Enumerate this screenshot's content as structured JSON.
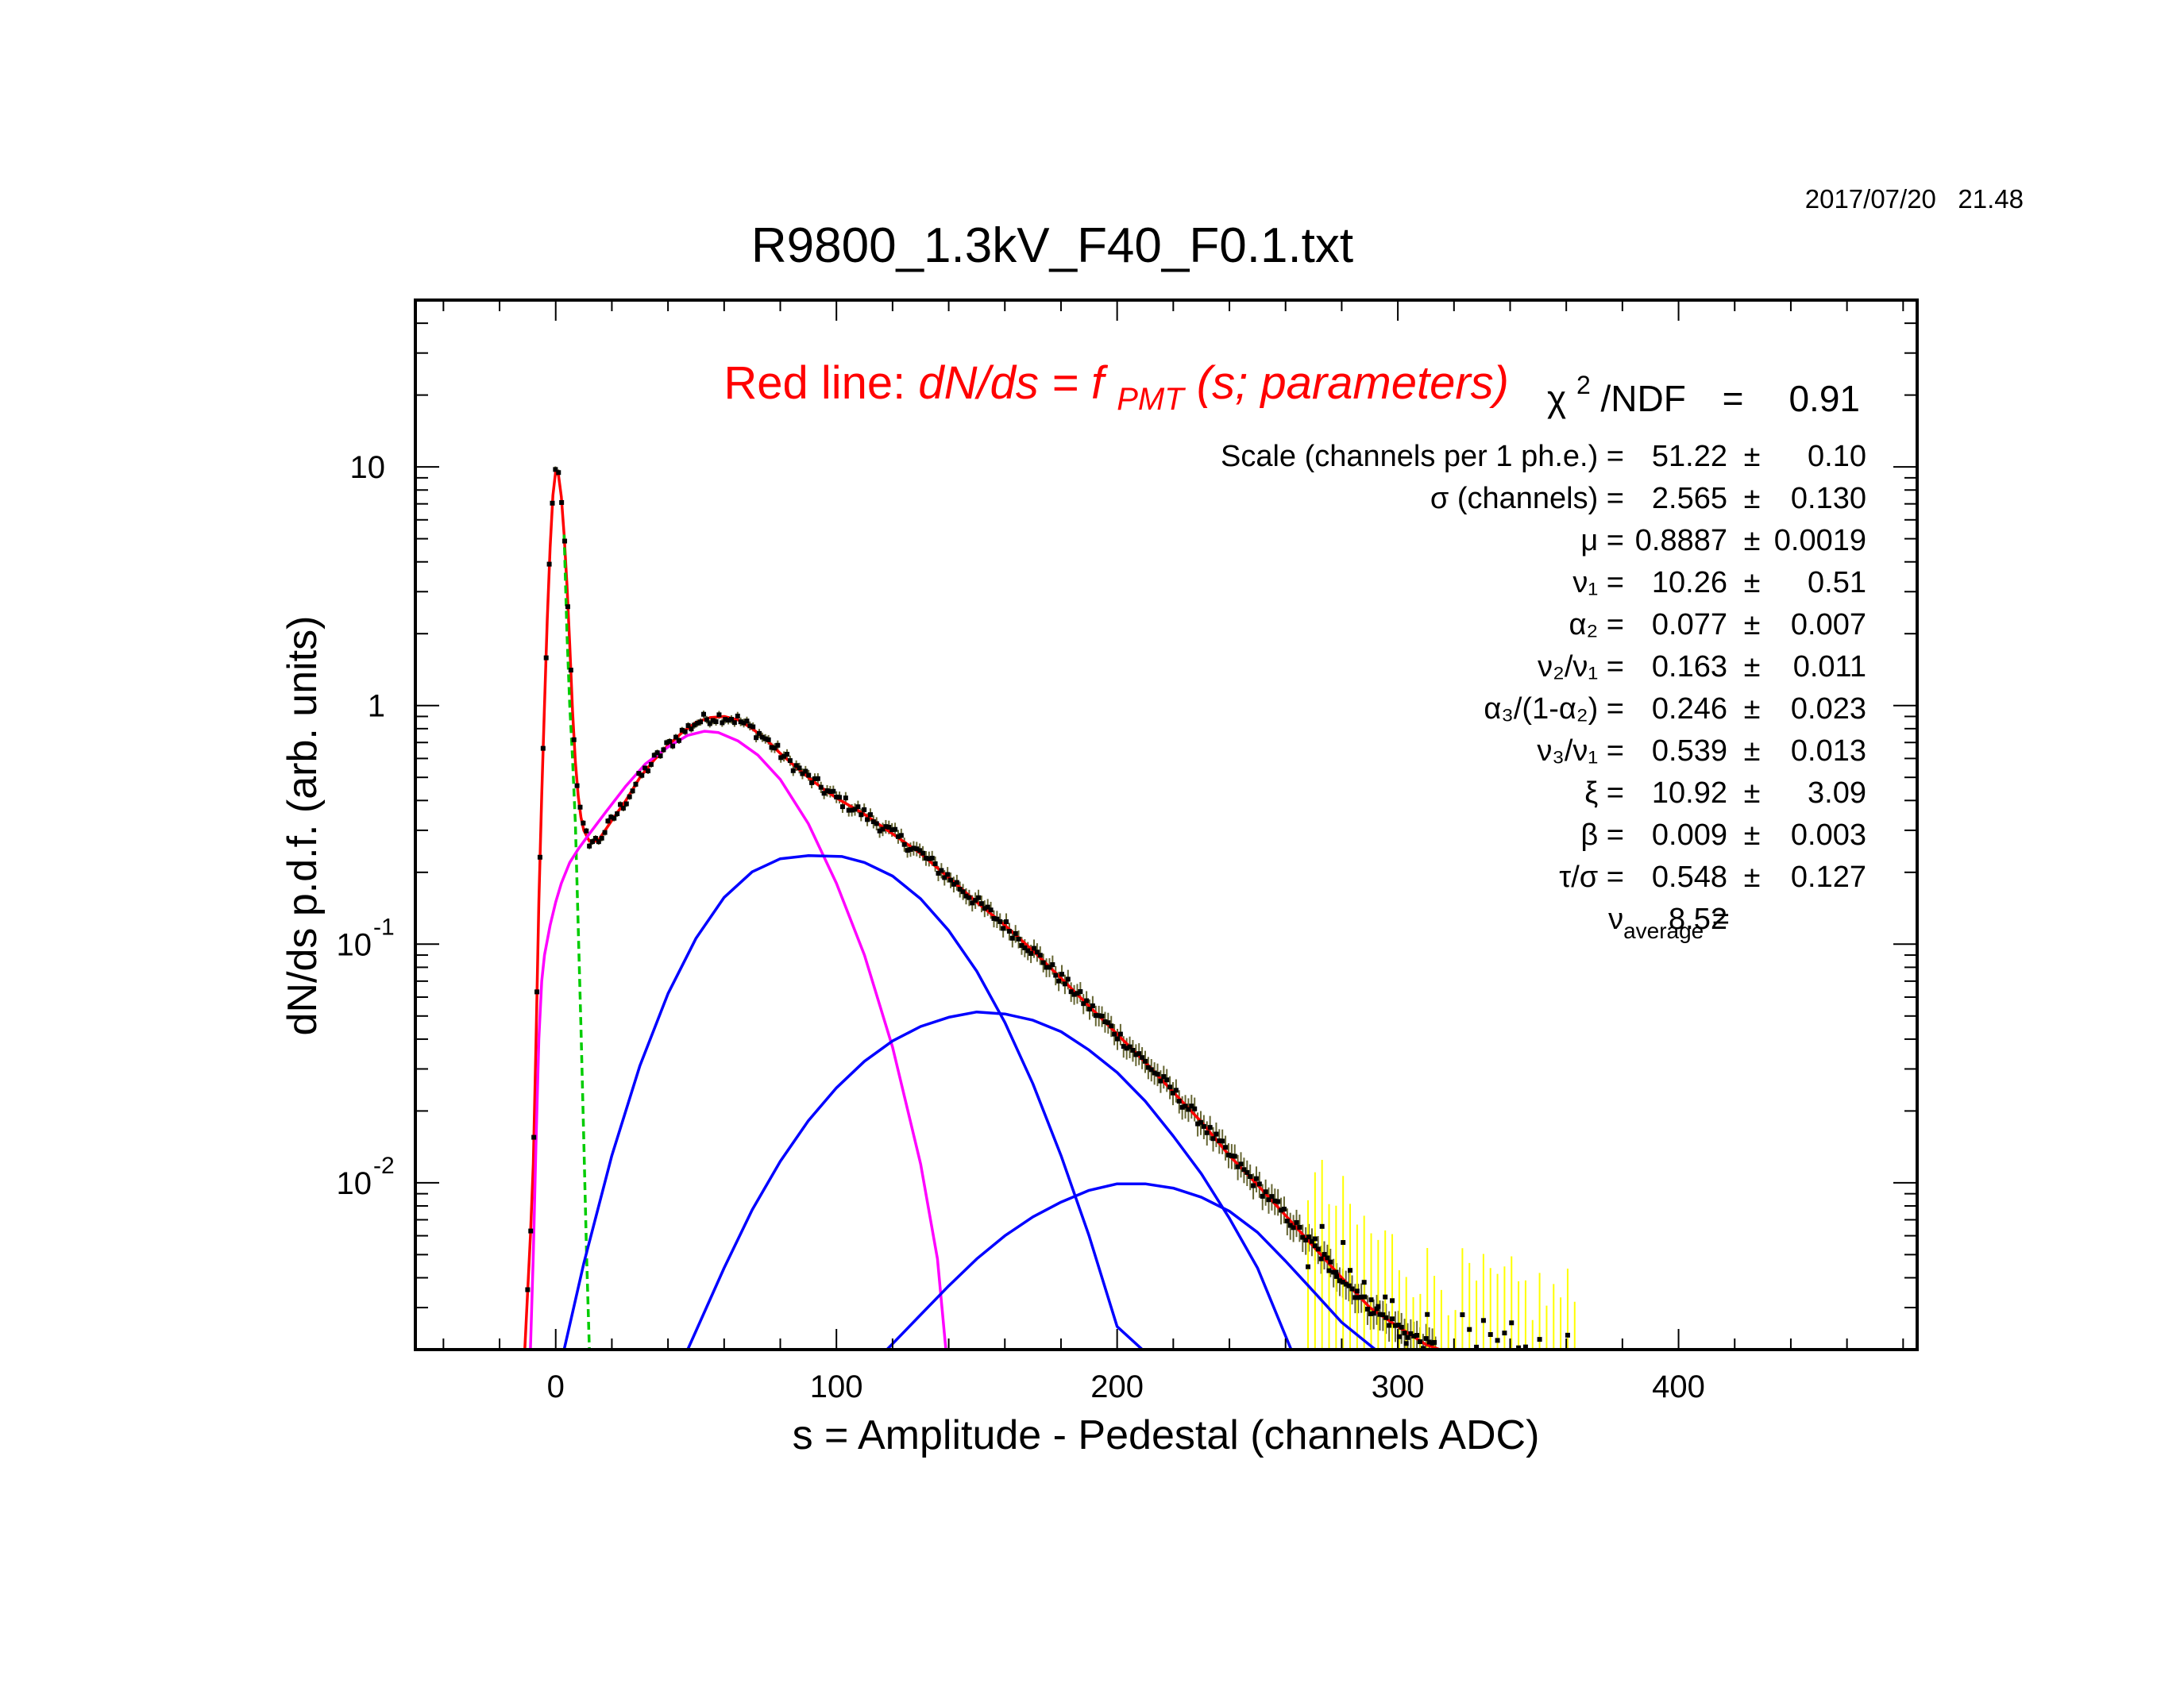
{
  "timestamp": "2017/07/20   21.48",
  "title": "R9800_1.3kV_F40_F0.1.txt",
  "xlabel": "s = Amplitude - Pedestal (channels ADC)",
  "ylabel": "dN/ds p.d.f. (arb. units)",
  "annotation": {
    "prefix": "Red line:",
    "formula_lhs": "dN/ds = f",
    "formula_sub": "PMT",
    "formula_rhs": "(s; parameters)"
  },
  "fit": {
    "chi2_symbol": "χ",
    "chi2_sup": "2",
    "chi2_label": "/NDF",
    "chi2_eq": "=",
    "chi2_value": "0.91",
    "params": [
      {
        "label": "Scale (channels per 1 ph.e.) =",
        "value": "51.22",
        "pm": "±",
        "error": "0.10"
      },
      {
        "label": "σ (channels) =",
        "value": "2.565",
        "pm": "±",
        "error": "0.130"
      },
      {
        "label": "μ  =",
        "value": "0.8887",
        "pm": "±",
        "error": "0.0019"
      },
      {
        "label": "ν₁ =",
        "value": "10.26",
        "pm": "±",
        "error": "0.51"
      },
      {
        "label": "α₂ =",
        "value": "0.077",
        "pm": "±",
        "error": "0.007"
      },
      {
        "label": "ν₂/ν₁ =",
        "value": "0.163",
        "pm": "±",
        "error": "0.011"
      },
      {
        "label": "α₃/(1-α₂) =",
        "value": "0.246",
        "pm": "±",
        "error": "0.023"
      },
      {
        "label": "ν₃/ν₁ =",
        "value": "0.539",
        "pm": "±",
        "error": "0.013"
      },
      {
        "label": "ξ =",
        "value": "10.92",
        "pm": "±",
        "error": "3.09"
      },
      {
        "label": "β =",
        "value": "0.009",
        "pm": "±",
        "error": "0.003"
      },
      {
        "label": "τ/σ =",
        "value": "0.548",
        "pm": "±",
        "error": "0.127"
      },
      {
        "label": "ν",
        "label_sub": "average",
        "label_eq": " =",
        "value": "8.52",
        "pm": "",
        "error": ""
      }
    ]
  },
  "chart_data": {
    "type": "scatter",
    "title": "R9800_1.3kV_F40_F0.1.txt",
    "xlabel": "s = Amplitude - Pedestal (channels ADC)",
    "ylabel": "dN/ds p.d.f. (arb. units)",
    "xlim": [
      -50,
      485
    ],
    "ylim": [
      0.002,
      50
    ],
    "yscale": "log",
    "xticks": [
      {
        "value": 0,
        "label": "0"
      },
      {
        "value": 100,
        "label": "100"
      },
      {
        "value": 200,
        "label": "200"
      },
      {
        "value": 300,
        "label": "300"
      },
      {
        "value": 400,
        "label": "400"
      }
    ],
    "yticks": [
      {
        "value": 10,
        "base": "10",
        "exp": ""
      },
      {
        "value": 1,
        "base": "1",
        "exp": ""
      },
      {
        "value": 0.1,
        "base": "10",
        "exp": "-1"
      },
      {
        "value": 0.01,
        "base": "10",
        "exp": "-2"
      }
    ],
    "grid": false,
    "legend": "none",
    "series": [
      {
        "kind": "curve",
        "color": "#ff0000",
        "points": [
          [
            -11,
            0.002
          ],
          [
            -10,
            0.0035
          ],
          [
            -9,
            0.006
          ],
          [
            -8,
            0.012
          ],
          [
            -7,
            0.04
          ],
          [
            -6,
            0.15
          ],
          [
            -5,
            0.42
          ],
          [
            -4,
            1.0
          ],
          [
            -3,
            2.3
          ],
          [
            -2,
            4.6
          ],
          [
            -1,
            7.6
          ],
          [
            0,
            9.6
          ],
          [
            1,
            9.2
          ],
          [
            2,
            7.5
          ],
          [
            3,
            5.2
          ],
          [
            4,
            3.2
          ],
          [
            5,
            1.8
          ],
          [
            6,
            0.95
          ],
          [
            7,
            0.58
          ],
          [
            8,
            0.42
          ],
          [
            9,
            0.34
          ],
          [
            10,
            0.3
          ],
          [
            12,
            0.27
          ],
          [
            15,
            0.27
          ],
          [
            20,
            0.33
          ],
          [
            25,
            0.4
          ],
          [
            30,
            0.5
          ],
          [
            35,
            0.59
          ],
          [
            40,
            0.68
          ],
          [
            45,
            0.77
          ],
          [
            50,
            0.85
          ],
          [
            55,
            0.89
          ],
          [
            60,
            0.9
          ],
          [
            65,
            0.87
          ],
          [
            70,
            0.8
          ],
          [
            75,
            0.72
          ],
          [
            80,
            0.63
          ],
          [
            85,
            0.56
          ],
          [
            90,
            0.5
          ],
          [
            95,
            0.45
          ],
          [
            100,
            0.41
          ],
          [
            110,
            0.35
          ],
          [
            120,
            0.29
          ],
          [
            130,
            0.24
          ],
          [
            140,
            0.19
          ],
          [
            150,
            0.15
          ],
          [
            160,
            0.12
          ],
          [
            170,
            0.094
          ],
          [
            180,
            0.072
          ],
          [
            190,
            0.055
          ],
          [
            200,
            0.042
          ],
          [
            210,
            0.032
          ],
          [
            220,
            0.024
          ],
          [
            230,
            0.018
          ],
          [
            240,
            0.013
          ],
          [
            250,
            0.0098
          ],
          [
            260,
            0.0073
          ],
          [
            270,
            0.0054
          ],
          [
            280,
            0.004
          ],
          [
            290,
            0.003
          ],
          [
            300,
            0.0025
          ],
          [
            310,
            0.0021
          ],
          [
            315,
            0.002
          ]
        ]
      },
      {
        "kind": "curve",
        "color": "#00cc00",
        "dashed": true,
        "points": [
          [
            3,
            5.2
          ],
          [
            4,
            2.0
          ],
          [
            5,
            1.0
          ],
          [
            6,
            0.6
          ],
          [
            7,
            0.32
          ],
          [
            8,
            0.12
          ],
          [
            9,
            0.045
          ],
          [
            10,
            0.015
          ],
          [
            11,
            0.005
          ],
          [
            12,
            0.002
          ]
        ]
      },
      {
        "kind": "curve",
        "color": "#ff00ff",
        "points": [
          [
            -9,
            0.002
          ],
          [
            -8,
            0.005
          ],
          [
            -7,
            0.015
          ],
          [
            -6,
            0.04
          ],
          [
            -5,
            0.07
          ],
          [
            -4,
            0.09
          ],
          [
            -2,
            0.12
          ],
          [
            0,
            0.15
          ],
          [
            2,
            0.18
          ],
          [
            5,
            0.22
          ],
          [
            8,
            0.25
          ],
          [
            12,
            0.29
          ],
          [
            18,
            0.36
          ],
          [
            25,
            0.46
          ],
          [
            32,
            0.57
          ],
          [
            40,
            0.67
          ],
          [
            47,
            0.75
          ],
          [
            53,
            0.78
          ],
          [
            58,
            0.77
          ],
          [
            65,
            0.71
          ],
          [
            72,
            0.62
          ],
          [
            80,
            0.49
          ],
          [
            90,
            0.32
          ],
          [
            100,
            0.18
          ],
          [
            110,
            0.09
          ],
          [
            120,
            0.037
          ],
          [
            130,
            0.012
          ],
          [
            136,
            0.0048
          ],
          [
            139,
            0.002
          ]
        ]
      },
      {
        "kind": "curve",
        "color": "#0000ff",
        "points": [
          [
            3,
            0.002
          ],
          [
            10,
            0.0046
          ],
          [
            20,
            0.013
          ],
          [
            30,
            0.031
          ],
          [
            40,
            0.062
          ],
          [
            50,
            0.106
          ],
          [
            60,
            0.157
          ],
          [
            70,
            0.201
          ],
          [
            80,
            0.228
          ],
          [
            90,
            0.235
          ],
          [
            102,
            0.233
          ],
          [
            110,
            0.22
          ],
          [
            120,
            0.193
          ],
          [
            130,
            0.155
          ],
          [
            140,
            0.114
          ],
          [
            150,
            0.077
          ],
          [
            160,
            0.047
          ],
          [
            170,
            0.026
          ],
          [
            180,
            0.013
          ],
          [
            190,
            0.006
          ],
          [
            200,
            0.0025
          ],
          [
            209,
            0.002
          ]
        ]
      },
      {
        "kind": "curve",
        "color": "#0000ff",
        "points": [
          [
            47,
            0.002
          ],
          [
            60,
            0.0044
          ],
          [
            70,
            0.0077
          ],
          [
            80,
            0.0123
          ],
          [
            90,
            0.0182
          ],
          [
            100,
            0.025
          ],
          [
            110,
            0.0323
          ],
          [
            120,
            0.0393
          ],
          [
            130,
            0.0452
          ],
          [
            140,
            0.0494
          ],
          [
            150,
            0.052
          ],
          [
            160,
            0.051
          ],
          [
            170,
            0.048
          ],
          [
            180,
            0.043
          ],
          [
            190,
            0.036
          ],
          [
            200,
            0.029
          ],
          [
            210,
            0.022
          ],
          [
            220,
            0.0157
          ],
          [
            230,
            0.0109
          ],
          [
            240,
            0.0071
          ],
          [
            250,
            0.0044
          ],
          [
            262,
            0.002
          ]
        ]
      },
      {
        "kind": "curve",
        "color": "#0000ff",
        "points": [
          [
            118,
            0.002
          ],
          [
            130,
            0.0028
          ],
          [
            140,
            0.0037
          ],
          [
            150,
            0.0048
          ],
          [
            160,
            0.006
          ],
          [
            170,
            0.0072
          ],
          [
            180,
            0.0083
          ],
          [
            190,
            0.0093
          ],
          [
            200,
            0.0099
          ],
          [
            210,
            0.0099
          ],
          [
            220,
            0.0095
          ],
          [
            230,
            0.0087
          ],
          [
            240,
            0.0076
          ],
          [
            250,
            0.0062
          ],
          [
            260,
            0.0047
          ],
          [
            270,
            0.0035
          ],
          [
            280,
            0.0026
          ],
          [
            292,
            0.002
          ]
        ]
      },
      {
        "kind": "points",
        "color": "#000000",
        "error_color": "#666633",
        "noise": 0.06,
        "error_growth": 0.00045,
        "range": [
          -10,
          314
        ],
        "step": 1.1
      },
      {
        "kind": "points",
        "color": "#000000",
        "error_color": "#ffff00",
        "noise": 0.35,
        "error_growth": 0.004,
        "range": [
          268,
          365
        ],
        "step": 2.5,
        "reference": [
          [
            268,
            0.0055
          ],
          [
            290,
            0.0032
          ],
          [
            310,
            0.0022
          ],
          [
            330,
            0.0019
          ],
          [
            350,
            0.0018
          ],
          [
            365,
            0.0017
          ]
        ]
      }
    ]
  }
}
